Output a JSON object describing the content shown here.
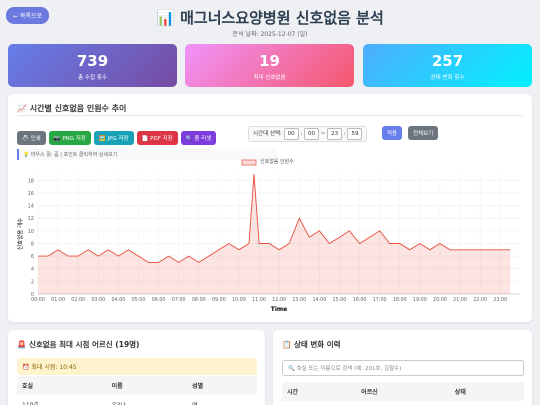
{
  "header": {
    "back": "← 목록으로",
    "title": "📊 매그너스요양병원 신호없음 분석",
    "date": "분석 날짜: 2025-12-07 (일)"
  },
  "stats": [
    {
      "value": 739,
      "label": "총 수집 횟수"
    },
    {
      "value": 19,
      "label": "최대 신호없음"
    },
    {
      "value": 257,
      "label": "상태 변화 횟수"
    }
  ],
  "chart_section": {
    "title": "📈 시간별 신호없음 인원수 추이",
    "buttons": [
      "🖨️ 인쇄",
      "📷 PNG 저장",
      "🖼️ JPG 저장",
      "📄 PDF 저장",
      "🔍 줌 리셋"
    ],
    "range_label": "시간대 선택:",
    "range": {
      "start_h": "00",
      "start_m": "00",
      "sep": "~",
      "end_h": "23",
      "end_m": "59"
    },
    "apply": "적용",
    "reset": "전체보기",
    "hint": "💡 마우스 휠: 줌 | 포인트 클릭하여 상세보기"
  },
  "chart_data": {
    "type": "line",
    "x": [
      "00:00",
      "00:30",
      "01:00",
      "01:30",
      "02:00",
      "02:30",
      "03:00",
      "03:30",
      "04:00",
      "04:30",
      "05:00",
      "05:30",
      "06:00",
      "06:30",
      "07:00",
      "07:30",
      "08:00",
      "08:30",
      "09:00",
      "09:30",
      "10:00",
      "10:30",
      "10:45",
      "11:00",
      "11:30",
      "12:00",
      "12:30",
      "13:00",
      "13:30",
      "14:00",
      "14:30",
      "15:00",
      "15:30",
      "16:00",
      "16:30",
      "17:00",
      "17:30",
      "18:00",
      "18:30",
      "19:00",
      "19:30",
      "20:00",
      "20:30",
      "21:00",
      "21:30",
      "22:00",
      "22:30",
      "23:00",
      "23:30"
    ],
    "series": [
      {
        "name": "신호없음 인원수",
        "color": "#e74c3c",
        "values": [
          6,
          6,
          7,
          6,
          6,
          7,
          6,
          7,
          6,
          7,
          6,
          5,
          5,
          6,
          5,
          6,
          5,
          6,
          7,
          8,
          7,
          8,
          19,
          8,
          8,
          7,
          8,
          12,
          9,
          10,
          8,
          9,
          10,
          8,
          9,
          10,
          8,
          8,
          7,
          8,
          7,
          8,
          7,
          7,
          7,
          7,
          7,
          7,
          7
        ]
      }
    ],
    "xlim": [
      "00:00",
      "23:59"
    ],
    "xticks": [
      "00:00",
      "01:00",
      "02:00",
      "03:00",
      "04:00",
      "05:00",
      "06:00",
      "07:00",
      "08:00",
      "09:00",
      "10:00",
      "11:00",
      "12:00",
      "13:00",
      "14:00",
      "15:00",
      "16:00",
      "17:00",
      "18:00",
      "19:00",
      "20:00",
      "21:00",
      "22:00",
      "23:00"
    ],
    "ylim": [
      0,
      19
    ],
    "yticks": [
      0,
      2,
      4,
      6,
      8,
      10,
      12,
      14,
      16,
      18
    ],
    "xlabel": "Time",
    "ylabel": "신호없음 개수",
    "grid": true
  },
  "max_panel": {
    "title": "🚨 신호없음 최대 시점 어르신 (19명)",
    "time": "⏰ 최대 시점: 10:45",
    "headers": [
      "호실",
      "이름",
      "성별"
    ],
    "rows": [
      [
        "110호",
        "유?나",
        "여"
      ]
    ]
  },
  "history_panel": {
    "title": "📋 상태 변화 이력",
    "search": "🔍 호실 또는 이름으로 검색 (예: 201호, 김철수)",
    "headers": [
      "시간",
      "어르신",
      "상태"
    ]
  }
}
